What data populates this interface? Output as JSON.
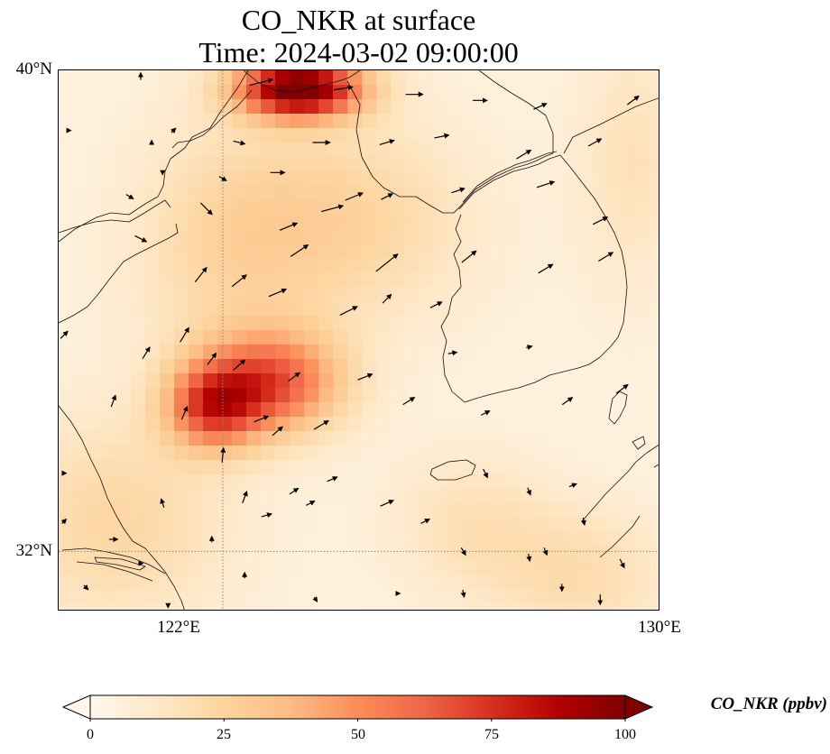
{
  "title": {
    "line1": "CO_NKR at surface",
    "line2": "Time: 2024-03-02 09:00:00"
  },
  "map": {
    "extent": {
      "lon_min": 119,
      "lon_max": 130,
      "lat_min": 31,
      "lat_max": 40
    },
    "lat_labels": [
      {
        "value": 40,
        "text": "40°N"
      },
      {
        "value": 32,
        "text": "32°N"
      }
    ],
    "lon_labels": [
      {
        "value": 122,
        "text": "122°E"
      },
      {
        "value": 130,
        "text": "130°E"
      }
    ],
    "gridlines": {
      "lon": [
        122
      ],
      "lat": [
        32
      ],
      "style": "dotted",
      "color": "#888888"
    },
    "concentration_field": {
      "variable": "CO_NKR",
      "background_ppbv": 5,
      "plumes": [
        {
          "lon": 122.9,
          "lat": 34.8,
          "peak_ppbv": 58,
          "sigma_lon": 0.9,
          "sigma_lat": 0.6
        },
        {
          "lon": 121.8,
          "lat": 34.4,
          "peak_ppbv": 55,
          "sigma_lon": 0.6,
          "sigma_lat": 0.5
        },
        {
          "lon": 123.4,
          "lat": 39.7,
          "peak_ppbv": 100,
          "sigma_lon": 0.8,
          "sigma_lat": 0.35
        },
        {
          "lon": 124.2,
          "lat": 37.5,
          "peak_ppbv": 20,
          "sigma_lon": 1.6,
          "sigma_lat": 1.2
        },
        {
          "lon": 122.0,
          "lat": 37.0,
          "peak_ppbv": 15,
          "sigma_lon": 1.2,
          "sigma_lat": 1.5
        },
        {
          "lon": 120.0,
          "lat": 32.5,
          "peak_ppbv": 18,
          "sigma_lon": 1.5,
          "sigma_lat": 1.2
        },
        {
          "lon": 128.5,
          "lat": 31.6,
          "peak_ppbv": 15,
          "sigma_lon": 1.2,
          "sigma_lat": 0.8
        },
        {
          "lon": 126.5,
          "lat": 32.5,
          "peak_ppbv": 12,
          "sigma_lon": 1.0,
          "sigma_lat": 0.8
        },
        {
          "lon": 129.5,
          "lat": 38.5,
          "peak_ppbv": 12,
          "sigma_lon": 0.7,
          "sigma_lat": 1.5
        }
      ]
    },
    "wind_vectors": [
      {
        "lon": 120.5,
        "lat": 39.9,
        "u": 0.0,
        "v": 0.5
      },
      {
        "lon": 122.7,
        "lat": 39.8,
        "u": 1.6,
        "v": 0.4
      },
      {
        "lon": 124.2,
        "lat": 39.7,
        "u": 1.3,
        "v": 0.2
      },
      {
        "lon": 125.5,
        "lat": 39.6,
        "u": 1.2,
        "v": 0.0
      },
      {
        "lon": 126.7,
        "lat": 39.5,
        "u": 1.0,
        "v": 0.0
      },
      {
        "lon": 127.8,
        "lat": 39.4,
        "u": 0.9,
        "v": 0.4
      },
      {
        "lon": 129.5,
        "lat": 39.5,
        "u": 0.8,
        "v": 0.6
      },
      {
        "lon": 120.7,
        "lat": 38.8,
        "u": 0.0,
        "v": 0.3
      },
      {
        "lon": 121.1,
        "lat": 39.0,
        "u": 0.3,
        "v": 0.3
      },
      {
        "lon": 122.3,
        "lat": 38.8,
        "u": 0.8,
        "v": -0.2
      },
      {
        "lon": 123.8,
        "lat": 38.8,
        "u": 1.2,
        "v": 0.0
      },
      {
        "lon": 125.0,
        "lat": 38.8,
        "u": 1.0,
        "v": 0.3
      },
      {
        "lon": 126.0,
        "lat": 38.9,
        "u": 1.0,
        "v": 0.2
      },
      {
        "lon": 127.5,
        "lat": 38.6,
        "u": 1.0,
        "v": 0.6
      },
      {
        "lon": 128.8,
        "lat": 38.8,
        "u": 0.9,
        "v": 0.5
      },
      {
        "lon": 120.9,
        "lat": 38.3,
        "u": 0.0,
        "v": -0.3
      },
      {
        "lon": 122.0,
        "lat": 38.2,
        "u": 0.5,
        "v": -0.3
      },
      {
        "lon": 123.0,
        "lat": 38.3,
        "u": 1.0,
        "v": 0.0
      },
      {
        "lon": 124.4,
        "lat": 37.9,
        "u": 1.2,
        "v": 0.5
      },
      {
        "lon": 125.0,
        "lat": 37.9,
        "u": 0.8,
        "v": 0.4
      },
      {
        "lon": 126.3,
        "lat": 38.0,
        "u": 0.9,
        "v": 0.3
      },
      {
        "lon": 127.9,
        "lat": 38.1,
        "u": 1.2,
        "v": 0.4
      },
      {
        "lon": 119.2,
        "lat": 39.0,
        "u": 0.0,
        "v": 0.0
      },
      {
        "lon": 120.3,
        "lat": 37.9,
        "u": 0.5,
        "v": -0.3
      },
      {
        "lon": 121.7,
        "lat": 37.7,
        "u": 0.8,
        "v": -0.8
      },
      {
        "lon": 123.2,
        "lat": 37.4,
        "u": 1.2,
        "v": 0.5
      },
      {
        "lon": 124.0,
        "lat": 37.7,
        "u": 1.5,
        "v": 0.4
      },
      {
        "lon": 128.9,
        "lat": 37.5,
        "u": 1.0,
        "v": 0.5
      },
      {
        "lon": 120.5,
        "lat": 37.2,
        "u": 0.8,
        "v": -0.4
      },
      {
        "lon": 123.4,
        "lat": 37.0,
        "u": 1.2,
        "v": 0.8
      },
      {
        "lon": 125.0,
        "lat": 36.8,
        "u": 1.5,
        "v": 1.2
      },
      {
        "lon": 126.5,
        "lat": 36.9,
        "u": 1.0,
        "v": 0.8
      },
      {
        "lon": 127.9,
        "lat": 36.7,
        "u": 1.0,
        "v": 0.6
      },
      {
        "lon": 129.0,
        "lat": 36.9,
        "u": 1.0,
        "v": 0.6
      },
      {
        "lon": 121.6,
        "lat": 36.6,
        "u": 0.8,
        "v": 1.0
      },
      {
        "lon": 122.3,
        "lat": 36.5,
        "u": 1.0,
        "v": 0.8
      },
      {
        "lon": 123.0,
        "lat": 36.3,
        "u": 1.2,
        "v": 0.5
      },
      {
        "lon": 124.3,
        "lat": 36.0,
        "u": 1.2,
        "v": 0.6
      },
      {
        "lon": 125.0,
        "lat": 36.2,
        "u": 0.6,
        "v": 0.6
      },
      {
        "lon": 125.9,
        "lat": 36.1,
        "u": 0.8,
        "v": 0.4
      },
      {
        "lon": 120.6,
        "lat": 35.3,
        "u": 0.5,
        "v": 0.8
      },
      {
        "lon": 121.3,
        "lat": 35.6,
        "u": 0.6,
        "v": 1.0
      },
      {
        "lon": 121.8,
        "lat": 35.2,
        "u": 0.6,
        "v": 0.8
      },
      {
        "lon": 122.3,
        "lat": 35.1,
        "u": 0.8,
        "v": 0.7
      },
      {
        "lon": 123.3,
        "lat": 34.9,
        "u": 0.8,
        "v": 0.6
      },
      {
        "lon": 124.6,
        "lat": 34.9,
        "u": 1.0,
        "v": 0.4
      },
      {
        "lon": 126.2,
        "lat": 35.3,
        "u": 0.6,
        "v": 0.1
      },
      {
        "lon": 127.6,
        "lat": 35.4,
        "u": 0.4,
        "v": 0.1
      },
      {
        "lon": 119.1,
        "lat": 35.6,
        "u": 0.5,
        "v": 0.5
      },
      {
        "lon": 120.0,
        "lat": 34.5,
        "u": 0.3,
        "v": 0.8
      },
      {
        "lon": 121.3,
        "lat": 34.3,
        "u": 0.4,
        "v": 0.9
      },
      {
        "lon": 122.7,
        "lat": 34.2,
        "u": 1.0,
        "v": 0.4
      },
      {
        "lon": 123.0,
        "lat": 34.0,
        "u": 0.7,
        "v": 0.6
      },
      {
        "lon": 123.8,
        "lat": 34.1,
        "u": 1.0,
        "v": 0.6
      },
      {
        "lon": 125.4,
        "lat": 34.5,
        "u": 0.8,
        "v": 0.5
      },
      {
        "lon": 126.8,
        "lat": 34.3,
        "u": 0.6,
        "v": 0.3
      },
      {
        "lon": 128.3,
        "lat": 34.5,
        "u": 0.7,
        "v": 0.5
      },
      {
        "lon": 129.3,
        "lat": 34.7,
        "u": 0.8,
        "v": 0.6
      },
      {
        "lon": 119.1,
        "lat": 33.3,
        "u": 0.3,
        "v": 0.0
      },
      {
        "lon": 122.0,
        "lat": 33.6,
        "u": 0.1,
        "v": 1.0
      },
      {
        "lon": 122.4,
        "lat": 32.9,
        "u": 0.3,
        "v": 0.8
      },
      {
        "lon": 123.3,
        "lat": 33.0,
        "u": 0.6,
        "v": 0.4
      },
      {
        "lon": 124.0,
        "lat": 33.2,
        "u": 0.7,
        "v": 0.3
      },
      {
        "lon": 125.0,
        "lat": 32.8,
        "u": 0.9,
        "v": 0.4
      },
      {
        "lon": 128.4,
        "lat": 33.1,
        "u": 0.5,
        "v": 0.2
      },
      {
        "lon": 119.1,
        "lat": 32.5,
        "u": 0.3,
        "v": 0.3
      },
      {
        "lon": 120.0,
        "lat": 32.2,
        "u": 0.6,
        "v": 0.0
      },
      {
        "lon": 120.9,
        "lat": 32.8,
        "u": -0.2,
        "v": 0.6
      },
      {
        "lon": 121.8,
        "lat": 32.2,
        "u": 0.0,
        "v": 0.4
      },
      {
        "lon": 122.8,
        "lat": 32.6,
        "u": 0.7,
        "v": 0.2
      },
      {
        "lon": 123.6,
        "lat": 32.8,
        "u": 0.6,
        "v": 0.3
      },
      {
        "lon": 125.7,
        "lat": 32.5,
        "u": 0.6,
        "v": 0.3
      },
      {
        "lon": 126.8,
        "lat": 33.3,
        "u": 0.3,
        "v": -0.6
      },
      {
        "lon": 127.6,
        "lat": 33.0,
        "u": 0.2,
        "v": -0.5
      },
      {
        "lon": 128.6,
        "lat": 32.5,
        "u": 0.1,
        "v": -0.5
      },
      {
        "lon": 126.4,
        "lat": 32.0,
        "u": 0.3,
        "v": -0.5
      },
      {
        "lon": 127.6,
        "lat": 31.9,
        "u": 0.1,
        "v": -0.5
      },
      {
        "lon": 128.2,
        "lat": 31.4,
        "u": 0.0,
        "v": -0.5
      },
      {
        "lon": 127.9,
        "lat": 32.0,
        "u": 0.2,
        "v": -0.5
      },
      {
        "lon": 129.3,
        "lat": 31.8,
        "u": 0.3,
        "v": -0.6
      },
      {
        "lon": 120.5,
        "lat": 31.8,
        "u": 0.3,
        "v": 0.0
      },
      {
        "lon": 122.4,
        "lat": 31.6,
        "u": 0.0,
        "v": 0.4
      },
      {
        "lon": 125.2,
        "lat": 31.3,
        "u": 0.3,
        "v": 0.0
      },
      {
        "lon": 126.4,
        "lat": 31.3,
        "u": 0.1,
        "v": -0.5
      },
      {
        "lon": 128.9,
        "lat": 31.2,
        "u": 0.0,
        "v": -0.7
      },
      {
        "lon": 119.5,
        "lat": 31.4,
        "u": 0.3,
        "v": -0.3
      },
      {
        "lon": 121.0,
        "lat": 31.1,
        "u": 0.0,
        "v": -0.3
      },
      {
        "lon": 123.7,
        "lat": 31.2,
        "u": 0.2,
        "v": -0.3
      }
    ]
  },
  "colorbar": {
    "label": "CO_NKR (ppbv)",
    "min": 0,
    "max": 100,
    "extend": "both",
    "cmap": "OrRd",
    "stops": [
      "#fff7ec",
      "#fee8c8",
      "#fdd49e",
      "#fdbb84",
      "#fc8d59",
      "#ef6548",
      "#d7301f",
      "#b30000",
      "#7f0000"
    ],
    "ticks": [
      {
        "value": 0,
        "text": "0"
      },
      {
        "value": 25,
        "text": "25"
      },
      {
        "value": 50,
        "text": "50"
      },
      {
        "value": 75,
        "text": "75"
      },
      {
        "value": 100,
        "text": "100"
      }
    ]
  },
  "colors": {
    "coastline": "#111111",
    "gridline": "#888888",
    "arrow": "#000000"
  }
}
